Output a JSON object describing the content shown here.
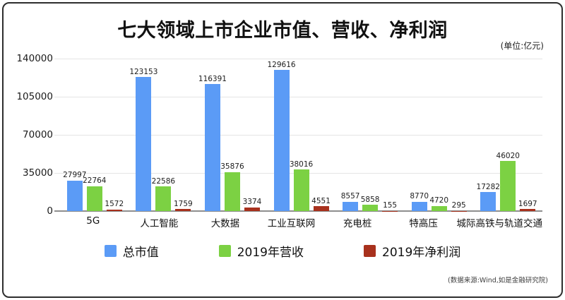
{
  "unit_note": "(单位:亿元)",
  "source_note": "(数据来源:Wind,如是金融研究院)",
  "chart_data": {
    "type": "bar",
    "title": "七大领域上市企业市值、营收、净利润",
    "unit": "亿元",
    "categories": [
      "5G",
      "人工智能",
      "大数据",
      "工业互联网",
      "充电桩",
      "特高压",
      "城际高铁与轨道交通"
    ],
    "series": [
      {
        "name": "总市值",
        "color": "#5B9BF6",
        "values": [
          27997,
          123153,
          116391,
          129616,
          8557,
          8770,
          17282
        ]
      },
      {
        "name": "2019年营收",
        "color": "#7CD143",
        "values": [
          22764,
          22586,
          35876,
          38016,
          5858,
          4720,
          46020
        ]
      },
      {
        "name": "2019年净利润",
        "color": "#A8311D",
        "values": [
          1572,
          1759,
          3374,
          4551,
          155,
          295,
          1697
        ]
      }
    ],
    "yticks": [
      0,
      35000,
      70000,
      105000,
      140000
    ],
    "ylim": [
      0,
      140000
    ],
    "grid": true,
    "legend_position": "bottom",
    "axis_line_color": "#8e8e8e",
    "gridline_color": "#e5e5e5"
  }
}
